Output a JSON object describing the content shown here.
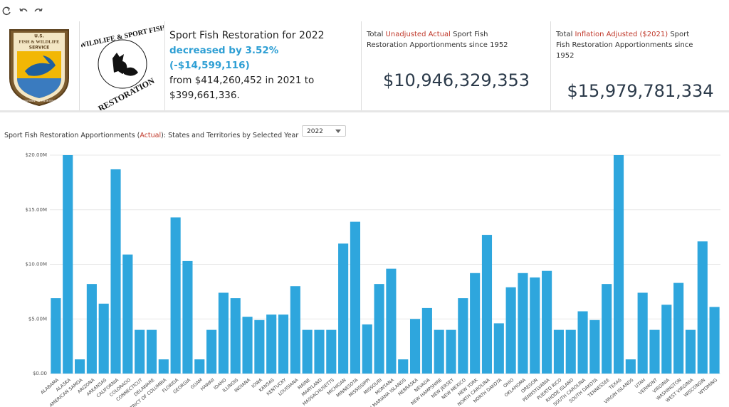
{
  "logos": {
    "fws": [
      "U.S.",
      "FISH & WILDLIFE",
      "SERVICE",
      "DEPARTMENT OF THE INTERIOR"
    ],
    "wsfr": [
      "WILDLIFE & SPORT FISH",
      "RESTORATION"
    ]
  },
  "summary": {
    "title": "Sport Fish Restoration for 2022",
    "change": "decreased by 3.52% (-$14,599,116)",
    "detail": "from $414,260,452 in 2021 to $399,661,336."
  },
  "kpis": [
    {
      "label": [
        "Total ",
        "Unadjusted Actual",
        " Sport Fish Restoration Apportionments since 1952"
      ],
      "value": "$10,946,329,353"
    },
    {
      "label": [
        "Total ",
        "Inflation Adjusted ($2021)",
        " Sport Fish Restoration Apportionments since 1952"
      ],
      "value": "$15,979,781,334"
    }
  ],
  "chart_data": {
    "type": "bar",
    "title": [
      "Sport Fish Restoration Apportionments (",
      "Actual",
      "): States and Territories by Selected Year"
    ],
    "selected_year": "2022",
    "color": "#2ea6dd",
    "grid": true,
    "categories": [
      "ALABAMA",
      "ALASKA",
      "AMERICAN SAMOA",
      "ARIZONA",
      "ARKANSAS",
      "CALIFORNIA",
      "COLORADO",
      "CONNECTICUT",
      "DELAWARE",
      "DISTRICT OF COLUMBIA",
      "FLORIDA",
      "GEORGIA",
      "GUAM",
      "HAWAII",
      "IDAHO",
      "ILLINOIS",
      "INDIANA",
      "IOWA",
      "KANSAS",
      "KENTUCKY",
      "LOUISIANA",
      "MAINE",
      "MARYLAND",
      "MASSACHUSETTS",
      "MICHIGAN",
      "MINNESOTA",
      "MISSISSIPPI",
      "MISSOURI",
      "MONTANA",
      "NORTHERN MARIANA ISLANDS",
      "NEBRASKA",
      "NEVADA",
      "NEW HAMPSHIRE",
      "NEW JERSEY",
      "NEW MEXICO",
      "NEW YORK",
      "NORTH CAROLINA",
      "NORTH DAKOTA",
      "OHIO",
      "OKLAHOMA",
      "OREGON",
      "PENNSYLVANIA",
      "PUERTO RICO",
      "RHODE ISLAND",
      "SOUTH CAROLINA",
      "SOUTH DAKOTA",
      "TENNESSEE",
      "TEXAS",
      "VIRGIN ISLANDS",
      "UTAH",
      "VERMONT",
      "VIRGINIA",
      "WASHINGTON",
      "WEST VIRGINIA",
      "WISCONSIN",
      "WYOMING"
    ],
    "values": [
      6900000,
      20000000,
      1300000,
      8200000,
      6400000,
      18700000,
      10900000,
      4000000,
      4000000,
      1300000,
      14300000,
      10300000,
      1300000,
      4000000,
      7400000,
      6900000,
      5200000,
      4900000,
      5400000,
      5400000,
      8000000,
      4000000,
      4000000,
      4000000,
      11900000,
      13900000,
      4500000,
      8200000,
      9600000,
      1300000,
      5000000,
      6000000,
      4000000,
      4000000,
      6900000,
      9200000,
      12700000,
      4600000,
      7900000,
      9200000,
      8800000,
      9400000,
      4000000,
      4000000,
      5700000,
      4900000,
      8200000,
      20000000,
      1300000,
      7400000,
      4000000,
      6300000,
      8300000,
      4000000,
      12100000,
      6100000
    ],
    "ylim": [
      0,
      20000000
    ],
    "yticks": [
      {
        "value": 0,
        "label": "$0.00"
      },
      {
        "value": 5000000,
        "label": "$5.00M"
      },
      {
        "value": 10000000,
        "label": "$10.00M"
      },
      {
        "value": 15000000,
        "label": "$15.00M"
      },
      {
        "value": 20000000,
        "label": "$20.00M"
      }
    ]
  }
}
